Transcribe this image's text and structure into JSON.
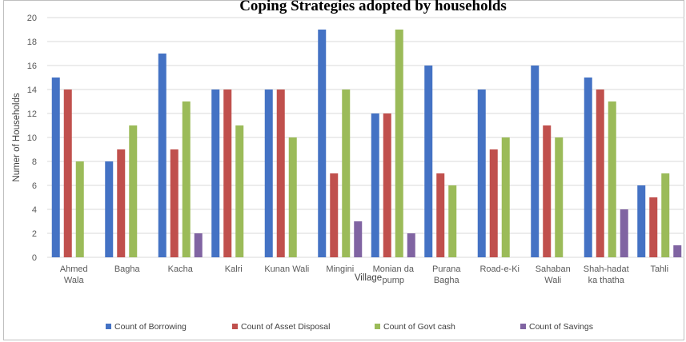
{
  "chart_data": {
    "type": "bar",
    "title": "Coping Strategies adopted by households",
    "xlabel": "Village",
    "ylabel": "Numer of Households",
    "ylim": [
      0,
      20
    ],
    "yticks": [
      0,
      2,
      4,
      6,
      8,
      10,
      12,
      14,
      16,
      18,
      20
    ],
    "grid": true,
    "legend_position": "bottom",
    "categories": [
      [
        "Ahmed",
        "Wala"
      ],
      [
        "Bagha"
      ],
      [
        "Kacha"
      ],
      [
        "Kalri"
      ],
      [
        "Kunan Wali"
      ],
      [
        "Mingini"
      ],
      [
        "Monian da",
        "pump"
      ],
      [
        "Purana",
        "Bagha"
      ],
      [
        "Road-e-Ki"
      ],
      [
        "Sahaban",
        "Wali"
      ],
      [
        "Shah-hadat",
        "ka thatha"
      ],
      [
        "Tahli"
      ]
    ],
    "series": [
      {
        "name": "Count of Borrowing",
        "color": "#4472c4",
        "values": [
          15,
          8,
          17,
          14,
          14,
          19,
          12,
          16,
          14,
          16,
          15,
          6
        ]
      },
      {
        "name": "Count of Asset Disposal",
        "color": "#c0504d",
        "values": [
          14,
          9,
          9,
          14,
          14,
          7,
          12,
          7,
          9,
          11,
          14,
          5
        ]
      },
      {
        "name": "Count of Govt cash",
        "color": "#9bbb59",
        "values": [
          8,
          11,
          13,
          11,
          10,
          14,
          19,
          6,
          10,
          10,
          13,
          7
        ]
      },
      {
        "name": "Count of Savings",
        "color": "#8064a2",
        "values": [
          null,
          null,
          2,
          null,
          null,
          3,
          2,
          null,
          null,
          null,
          4,
          1
        ]
      }
    ]
  }
}
